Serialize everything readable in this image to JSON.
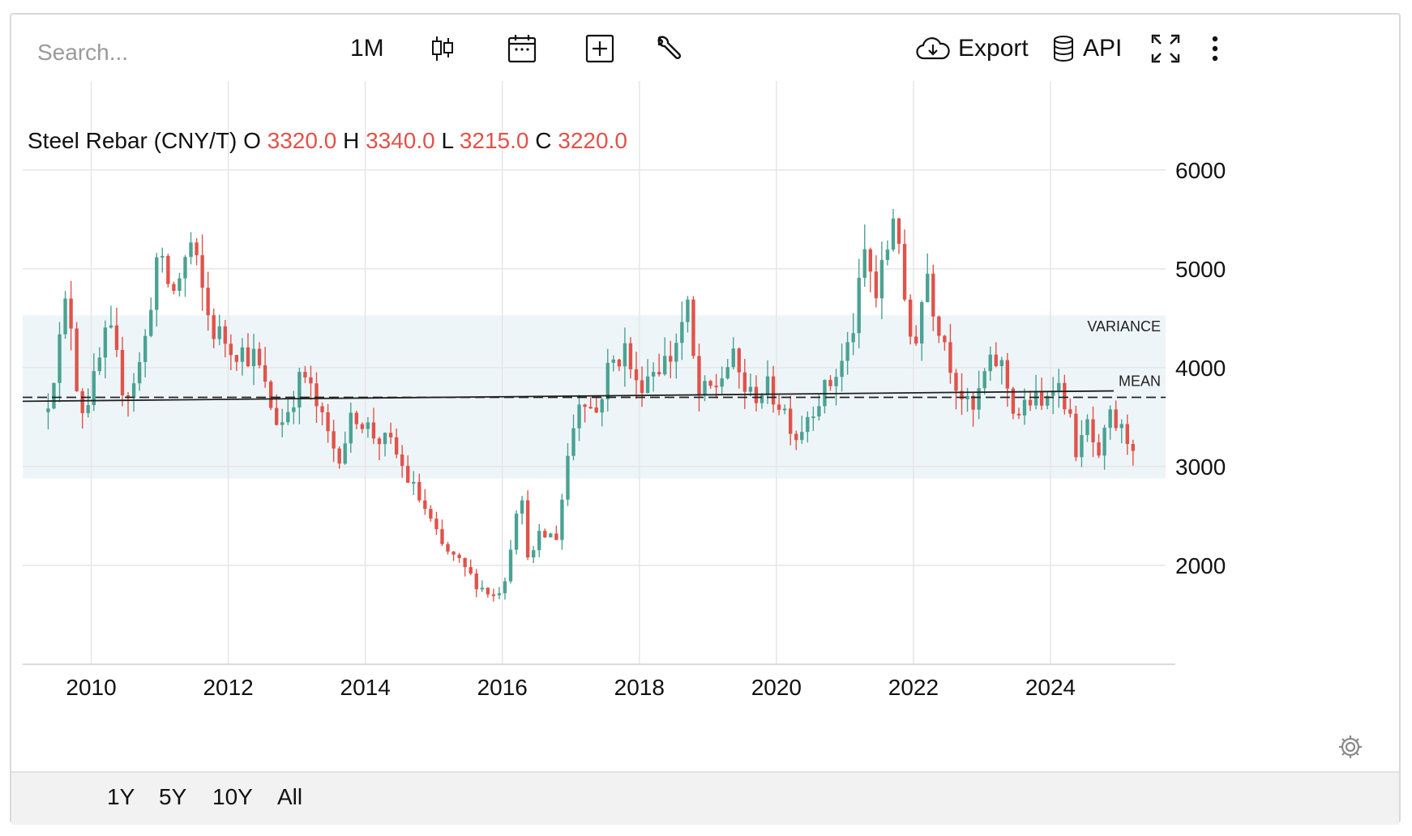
{
  "toolbar": {
    "search_placeholder": "Search...",
    "interval_label": "1M",
    "export_label": "Export",
    "api_label": "API"
  },
  "legend": {
    "name": "Steel Rebar (CNY/T)",
    "o_label": "O",
    "o_value": "3320.0",
    "h_label": "H",
    "h_value": "3340.0",
    "l_label": "L",
    "l_value": "3215.0",
    "c_label": "C",
    "c_value": "3220.0"
  },
  "range_buttons": [
    "1Y",
    "5Y",
    "10Y",
    "All"
  ],
  "colors": {
    "up": "#4aa293",
    "down": "#e0534a",
    "band": "#eef5f8",
    "grid": "#e6e6e6",
    "accent": "#e0534a"
  },
  "chart_data": {
    "type": "candlestick",
    "title": "Steel Rebar (CNY/T)",
    "x_ticks": [
      "2010",
      "2012",
      "2014",
      "2016",
      "2018",
      "2020",
      "2022",
      "2024"
    ],
    "y_ticks": [
      2000,
      3000,
      4000,
      5000,
      6000
    ],
    "ylim": [
      1000,
      6900
    ],
    "xlim": [
      2009.0,
      2025.68
    ],
    "mean": 3700,
    "variance_band": [
      2880,
      4530
    ],
    "regression": {
      "start": 3660,
      "end": 3765
    },
    "annotations": [
      "VARIANCE",
      "MEAN"
    ],
    "anchors": [
      [
        2009.33,
        3550
      ],
      [
        2009.58,
        4400
      ],
      [
        2009.66,
        4800
      ],
      [
        2009.83,
        3550
      ],
      [
        2010.0,
        3750
      ],
      [
        2010.25,
        4400
      ],
      [
        2010.5,
        3700
      ],
      [
        2010.75,
        4100
      ],
      [
        2010.95,
        5100
      ],
      [
        2011.2,
        4750
      ],
      [
        2011.45,
        5250
      ],
      [
        2011.75,
        4400
      ],
      [
        2012.1,
        4200
      ],
      [
        2012.4,
        4100
      ],
      [
        2012.6,
        3650
      ],
      [
        2012.75,
        3400
      ],
      [
        2013.1,
        3950
      ],
      [
        2013.4,
        3400
      ],
      [
        2013.6,
        3100
      ],
      [
        2013.85,
        3550
      ],
      [
        2014.15,
        3300
      ],
      [
        2014.4,
        3200
      ],
      [
        2014.6,
        2900
      ],
      [
        2014.85,
        2600
      ],
      [
        2015.1,
        2200
      ],
      [
        2015.4,
        2000
      ],
      [
        2015.65,
        1800
      ],
      [
        2015.9,
        1680
      ],
      [
        2016.05,
        1900
      ],
      [
        2016.25,
        2800
      ],
      [
        2016.4,
        2000
      ],
      [
        2016.55,
        2300
      ],
      [
        2016.8,
        2300
      ],
      [
        2016.95,
        3100
      ],
      [
        2017.15,
        3800
      ],
      [
        2017.35,
        3500
      ],
      [
        2017.55,
        4000
      ],
      [
        2017.8,
        4200
      ],
      [
        2017.95,
        3800
      ],
      [
        2018.2,
        4000
      ],
      [
        2018.45,
        4100
      ],
      [
        2018.7,
        4600
      ],
      [
        2018.85,
        3700
      ],
      [
        2019.1,
        3800
      ],
      [
        2019.35,
        4100
      ],
      [
        2019.6,
        3700
      ],
      [
        2019.85,
        3800
      ],
      [
        2020.1,
        3600
      ],
      [
        2020.3,
        3300
      ],
      [
        2020.5,
        3600
      ],
      [
        2020.75,
        3800
      ],
      [
        2021.0,
        4100
      ],
      [
        2021.15,
        4500
      ],
      [
        2021.3,
        5200
      ],
      [
        2021.45,
        4700
      ],
      [
        2021.65,
        5300
      ],
      [
        2021.75,
        5800
      ],
      [
        2021.85,
        4600
      ],
      [
        2022.0,
        4200
      ],
      [
        2022.2,
        5000
      ],
      [
        2022.3,
        4600
      ],
      [
        2022.45,
        4300
      ],
      [
        2022.6,
        3900
      ],
      [
        2022.85,
        3500
      ],
      [
        2023.05,
        3950
      ],
      [
        2023.25,
        4100
      ],
      [
        2023.5,
        3500
      ],
      [
        2023.75,
        3700
      ],
      [
        2023.9,
        3550
      ],
      [
        2024.0,
        3950
      ],
      [
        2024.2,
        3700
      ],
      [
        2024.4,
        3100
      ],
      [
        2024.55,
        3450
      ],
      [
        2024.7,
        3000
      ],
      [
        2024.85,
        3500
      ],
      [
        2025.1,
        3300
      ],
      [
        2025.2,
        3250
      ]
    ]
  }
}
